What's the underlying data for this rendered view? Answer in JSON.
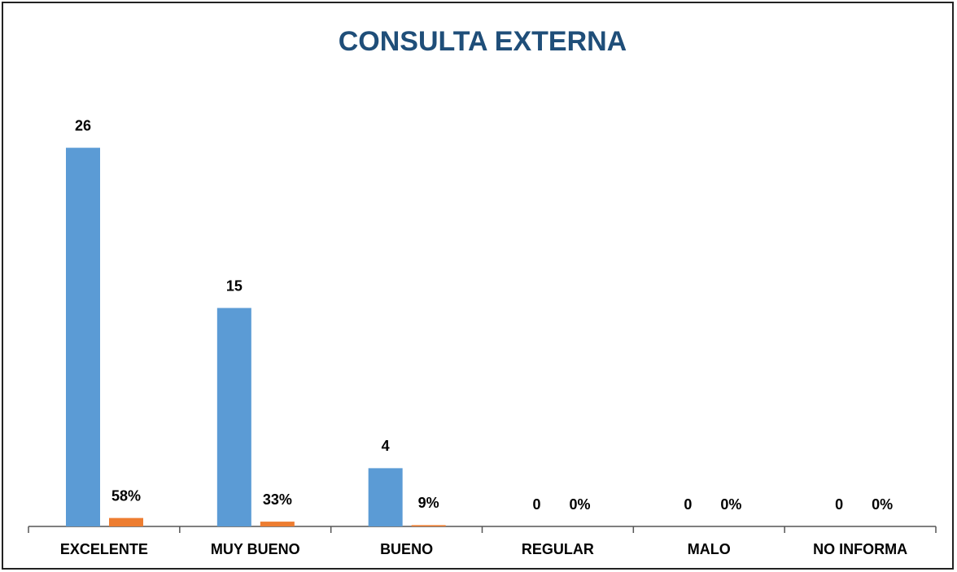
{
  "chart_data": {
    "type": "bar",
    "title": "CONSULTA EXTERNA",
    "categories": [
      "EXCELENTE",
      "MUY BUENO",
      "BUENO",
      "REGULAR",
      "MALO",
      "NO INFORMA"
    ],
    "series": [
      {
        "color": "#5b9bd5",
        "values": [
          26,
          15,
          4,
          0,
          0,
          0
        ]
      },
      {
        "color": "#ed7d31",
        "values": [
          0.58,
          0.33,
          0.09,
          0,
          0,
          0
        ],
        "value_labels": [
          "58%",
          "33%",
          "9%",
          "0%",
          "0%",
          "0%"
        ]
      }
    ],
    "ylim": [
      0,
      30
    ]
  }
}
